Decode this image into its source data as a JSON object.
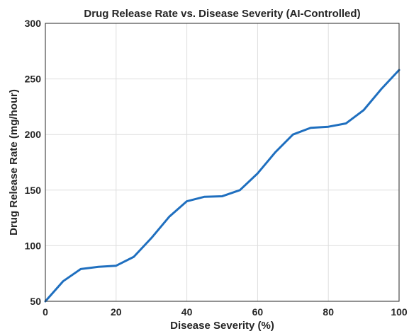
{
  "chart_data": {
    "type": "line",
    "title": "Drug Release Rate vs. Disease Severity (AI-Controlled)",
    "xlabel": "Disease Severity (%)",
    "ylabel": "Drug Release Rate (mg/hour)",
    "xlim": [
      0,
      100
    ],
    "ylim": [
      50,
      300
    ],
    "xticks": [
      0,
      20,
      40,
      60,
      80,
      100
    ],
    "yticks": [
      50,
      100,
      150,
      200,
      250,
      300
    ],
    "grid": true,
    "series": [
      {
        "color": "#1f6fbf",
        "x": [
          0,
          5,
          10,
          15,
          20,
          25,
          30,
          35,
          40,
          45,
          50,
          55,
          60,
          65,
          70,
          75,
          80,
          85,
          90,
          95,
          100
        ],
        "y": [
          50,
          68,
          79,
          81,
          82,
          90,
          107,
          126,
          140,
          144,
          144.5,
          150,
          165,
          184,
          200,
          206,
          207,
          210,
          222,
          241,
          258
        ]
      }
    ]
  }
}
